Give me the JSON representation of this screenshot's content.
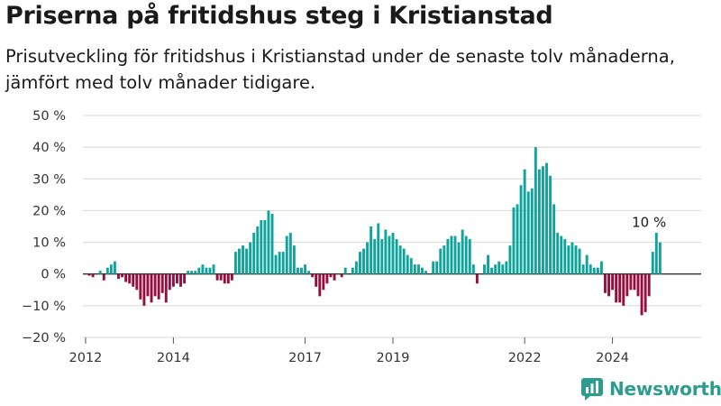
{
  "title": "Priserna på fritidshus steg i Kristianstad",
  "subtitle": "Prisutveckling för fritidshus i Kristianstad under de senaste tolv månaderna, jämfört med tolv månader tidigare.",
  "brand": "Newsworthy",
  "colors": {
    "positive": "#0fa49b",
    "negative": "#950e3e",
    "grid": "#d8d8d8",
    "zero": "#333333"
  },
  "chart_data": {
    "type": "bar",
    "title": "Priserna på fritidshus steg i Kristianstad",
    "xlabel": "",
    "ylabel": "",
    "ylim": [
      -20,
      50
    ],
    "y_ticks": [
      50,
      40,
      30,
      20,
      10,
      0,
      -10,
      -20
    ],
    "y_tick_labels": [
      "50 %",
      "40 %",
      "30 %",
      "20 %",
      "10 %",
      "0 %",
      "−10 %",
      "−20 %"
    ],
    "x_ticks": [
      {
        "label": "2012",
        "date": "2012-01"
      },
      {
        "label": "2014",
        "date": "2014-01"
      },
      {
        "label": "2017",
        "date": "2017-01"
      },
      {
        "label": "2019",
        "date": "2019-01"
      },
      {
        "label": "2022",
        "date": "2022-01"
      },
      {
        "label": "2024",
        "date": "2024-01"
      }
    ],
    "start_month": "2012-01",
    "annotation": {
      "text": "10 %",
      "date": "2024-11",
      "value": 10
    },
    "grid": true,
    "values": [
      0,
      -0.5,
      -1,
      0,
      1,
      -2,
      2,
      3,
      4,
      -1.5,
      -1,
      -2.5,
      -3,
      -4,
      -5,
      -8,
      -10,
      -7,
      -9,
      -7,
      -8,
      -6,
      -9,
      -5,
      -4,
      -3,
      -4,
      -3,
      1,
      1,
      1,
      2,
      3,
      2,
      2,
      3,
      -2,
      -2,
      -3,
      -3,
      -2,
      7,
      8,
      9,
      8,
      10,
      13,
      15,
      17,
      17,
      20,
      19,
      6,
      7,
      7,
      12,
      13,
      9,
      2,
      2,
      3,
      1,
      -1,
      -4,
      -7,
      -5,
      -3,
      -1,
      -2,
      0,
      -1,
      2,
      0,
      2,
      4,
      7,
      8,
      10,
      15,
      11,
      16,
      11,
      14,
      12,
      13,
      11,
      9,
      8,
      6,
      5,
      3,
      3,
      2,
      1,
      0,
      4,
      4,
      8,
      9,
      11,
      12,
      12,
      10,
      14,
      12,
      11,
      3,
      -3,
      0,
      3,
      6,
      2,
      3,
      4,
      3,
      4,
      9,
      21,
      22,
      28,
      33,
      26,
      27,
      40,
      33,
      34,
      35,
      31,
      22,
      13,
      12,
      11,
      9,
      10,
      9,
      8,
      3,
      6,
      3,
      2,
      2,
      4,
      -6,
      -7,
      -5,
      -9,
      -9,
      -10,
      -7,
      -5,
      -5,
      -7,
      -13,
      -12,
      -7,
      7,
      13,
      10
    ]
  }
}
